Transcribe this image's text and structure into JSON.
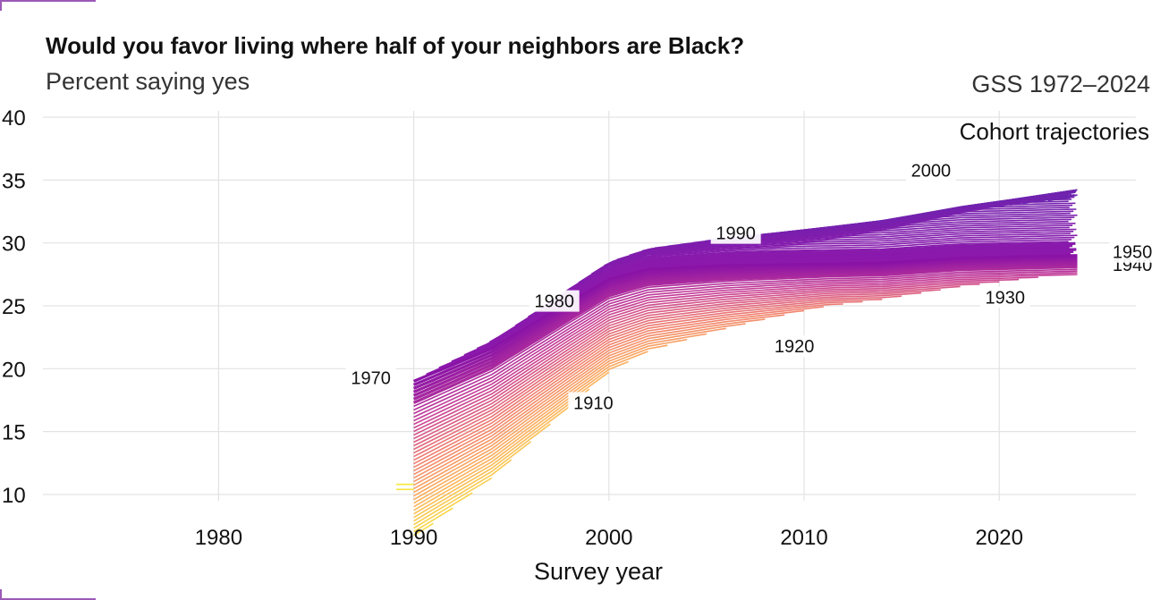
{
  "chart_data": {
    "type": "line",
    "title": "Would you favor living where half of your neighbors are Black?",
    "subtitle": "Percent saying yes",
    "caption": "GSS 1972–2024",
    "xlabel": "Survey year",
    "ylabel": "",
    "xlim": [
      1971,
      2027
    ],
    "ylim": [
      9.5,
      40.5
    ],
    "x_ticks": [
      1980,
      1990,
      2000,
      2010,
      2020
    ],
    "y_ticks": [
      10,
      15,
      20,
      25,
      30,
      35,
      40
    ],
    "grid": true,
    "legend_title": "Cohort trajectories",
    "cohorts": {
      "first": 1904,
      "last": 2006
    },
    "trajectory": [
      [
        1990,
        19.0
      ],
      [
        1994,
        21.6
      ],
      [
        1998,
        25.3
      ],
      [
        2000,
        27.1
      ],
      [
        2002,
        27.9
      ],
      [
        2006,
        28.2
      ],
      [
        2010,
        28.3
      ],
      [
        2014,
        28.4
      ],
      [
        2018,
        28.8
      ],
      [
        2024,
        29.0
      ]
    ],
    "cohort_labels": [
      {
        "cohort": 1910,
        "text": "1910",
        "x": 1999.2,
        "y": 17.0
      },
      {
        "cohort": 1920,
        "text": "1920",
        "x": 2009.5,
        "y": 21.5
      },
      {
        "cohort": 1930,
        "text": "1930",
        "x": 2020.3,
        "y": 25.4
      },
      {
        "cohort": 1940,
        "text": "1940",
        "x": 2025.8,
        "y": 28.0
      },
      {
        "cohort": 1950,
        "text": "1950",
        "x": 2025.8,
        "y": 29.0
      },
      {
        "cohort": 1970,
        "text": "1970",
        "x": 1987.8,
        "y": 19.0
      },
      {
        "cohort": 1980,
        "text": "1980",
        "x": 1997.2,
        "y": 25.1
      },
      {
        "cohort": 1990,
        "text": "1990",
        "x": 2006.5,
        "y": 30.5
      },
      {
        "cohort": 2000,
        "text": "2000",
        "x": 2016.5,
        "y": 35.5
      }
    ]
  }
}
